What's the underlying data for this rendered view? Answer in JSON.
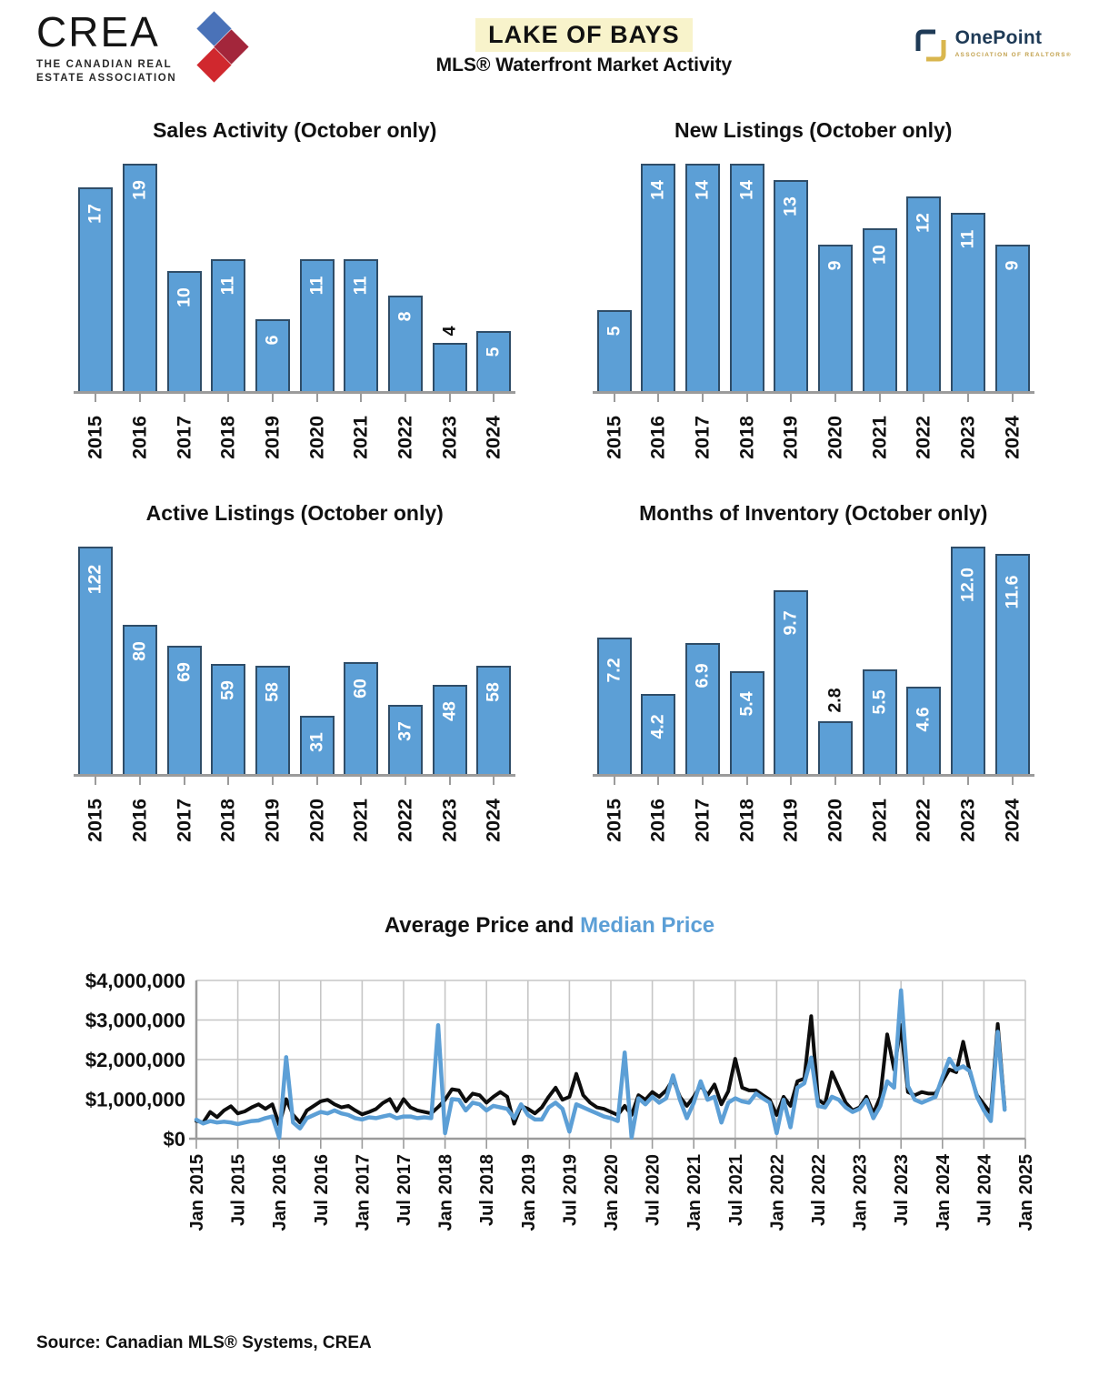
{
  "header": {
    "crea_wordmark": "CREA",
    "crea_tagline_line1": "THE CANADIAN REAL",
    "crea_tagline_line2": "ESTATE ASSOCIATION",
    "title": "LAKE OF BAYS",
    "subtitle": "MLS® Waterfront Market Activity",
    "onepoint_wordmark": "OnePoint",
    "onepoint_tagline": "ASSOCIATION OF REALTORS®"
  },
  "colors": {
    "bar_fill": "#5c9fd6",
    "bar_stroke": "#2f4d68",
    "average_line": "#0d0d0d",
    "median_line": "#5c9fd6",
    "grid": "#c6c6c6",
    "axis": "#9b9b9b",
    "title_highlight": "#f8f3cb",
    "value_label_inside": "#ffffff",
    "value_label_outside": "#000000"
  },
  "chart_data": [
    {
      "type": "bar",
      "title": "Sales Activity (October only)",
      "categories": [
        "2015",
        "2016",
        "2017",
        "2018",
        "2019",
        "2020",
        "2021",
        "2022",
        "2023",
        "2024"
      ],
      "values": [
        17,
        19,
        10,
        11,
        6,
        11,
        11,
        8,
        4,
        5
      ],
      "labels": [
        "17",
        "19",
        "10",
        "11",
        "6",
        "11",
        "11",
        "8",
        "4",
        "5"
      ],
      "outside_label_indices": [
        8
      ]
    },
    {
      "type": "bar",
      "title": "New Listings (October only)",
      "categories": [
        "2015",
        "2016",
        "2017",
        "2018",
        "2019",
        "2020",
        "2021",
        "2022",
        "2023",
        "2024"
      ],
      "values": [
        5,
        14,
        14,
        14,
        13,
        9,
        10,
        12,
        11,
        9
      ],
      "labels": [
        "5",
        "14",
        "14",
        "14",
        "13",
        "9",
        "10",
        "12",
        "11",
        "9"
      ],
      "outside_label_indices": []
    },
    {
      "type": "bar",
      "title": "Active Listings (October only)",
      "categories": [
        "2015",
        "2016",
        "2017",
        "2018",
        "2019",
        "2020",
        "2021",
        "2022",
        "2023",
        "2024"
      ],
      "values": [
        122,
        80,
        69,
        59,
        58,
        31,
        60,
        37,
        48,
        58
      ],
      "labels": [
        "122",
        "80",
        "69",
        "59",
        "58",
        "31",
        "60",
        "37",
        "48",
        "58"
      ],
      "outside_label_indices": []
    },
    {
      "type": "bar",
      "title": "Months of Inventory (October only)",
      "categories": [
        "2015",
        "2016",
        "2017",
        "2018",
        "2019",
        "2020",
        "2021",
        "2022",
        "2023",
        "2024"
      ],
      "values": [
        7.2,
        4.2,
        6.9,
        5.4,
        9.7,
        2.8,
        5.5,
        4.6,
        12.0,
        11.6
      ],
      "labels": [
        "7.2",
        "4.2",
        "6.9",
        "5.4",
        "9.7",
        "2.8",
        "5.5",
        "4.6",
        "12.0",
        "11.6"
      ],
      "outside_label_indices": [
        5
      ]
    },
    {
      "type": "line",
      "title_part1": "Average Price and ",
      "title_part2": "Median Price",
      "ylim": [
        0,
        4000000
      ],
      "y_ticks": [
        "$0",
        "$1,000,000",
        "$2,000,000",
        "$3,000,000",
        "$4,000,000"
      ],
      "x_tick_labels": [
        "Jan 2015",
        "Jul 2015",
        "Jan 2016",
        "Jul 2016",
        "Jan 2017",
        "Jul 2017",
        "Jan 2018",
        "Jul 2018",
        "Jan 2019",
        "Jul 2019",
        "Jan 2020",
        "Jul 2020",
        "Jan 2021",
        "Jul 2021",
        "Jan 2022",
        "Jul 2022",
        "Jan 2023",
        "Jul 2023",
        "Jan 2024",
        "Jul 2024",
        "Jan 2025"
      ],
      "x_tick_interval_months": 6,
      "months": [
        "2015-01",
        "2015-02",
        "2015-03",
        "2015-04",
        "2015-05",
        "2015-06",
        "2015-07",
        "2015-08",
        "2015-09",
        "2015-10",
        "2015-11",
        "2015-12",
        "2016-01",
        "2016-02",
        "2016-03",
        "2016-04",
        "2016-05",
        "2016-06",
        "2016-07",
        "2016-08",
        "2016-09",
        "2016-10",
        "2016-11",
        "2016-12",
        "2017-01",
        "2017-02",
        "2017-03",
        "2017-04",
        "2017-05",
        "2017-06",
        "2017-07",
        "2017-08",
        "2017-09",
        "2017-10",
        "2017-11",
        "2017-12",
        "2018-01",
        "2018-02",
        "2018-03",
        "2018-04",
        "2018-05",
        "2018-06",
        "2018-07",
        "2018-08",
        "2018-09",
        "2018-10",
        "2018-11",
        "2018-12",
        "2019-01",
        "2019-02",
        "2019-03",
        "2019-04",
        "2019-05",
        "2019-06",
        "2019-07",
        "2019-08",
        "2019-09",
        "2019-10",
        "2019-11",
        "2019-12",
        "2020-01",
        "2020-02",
        "2020-03",
        "2020-04",
        "2020-05",
        "2020-06",
        "2020-07",
        "2020-08",
        "2020-09",
        "2020-10",
        "2020-11",
        "2020-12",
        "2021-01",
        "2021-02",
        "2021-03",
        "2021-04",
        "2021-05",
        "2021-06",
        "2021-07",
        "2021-08",
        "2021-09",
        "2021-10",
        "2021-11",
        "2021-12",
        "2022-01",
        "2022-02",
        "2022-03",
        "2022-04",
        "2022-05",
        "2022-06",
        "2022-07",
        "2022-08",
        "2022-09",
        "2022-10",
        "2022-11",
        "2022-12",
        "2023-01",
        "2023-02",
        "2023-03",
        "2023-04",
        "2023-05",
        "2023-06",
        "2023-07",
        "2023-08",
        "2023-09",
        "2023-10",
        "2023-11",
        "2023-12",
        "2024-01",
        "2024-02",
        "2024-03",
        "2024-04",
        "2024-05",
        "2024-06",
        "2024-07",
        "2024-08",
        "2024-09",
        "2024-10"
      ],
      "series": [
        {
          "name": "Average Price",
          "color": "#0d0d0d",
          "values": [
            450000,
            410000,
            675000,
            545000,
            715000,
            820000,
            640000,
            690000,
            790000,
            870000,
            755000,
            870000,
            350000,
            1000000,
            600000,
            410000,
            715000,
            830000,
            945000,
            985000,
            870000,
            790000,
            830000,
            715000,
            615000,
            675000,
            750000,
            900000,
            1000000,
            700000,
            1000000,
            790000,
            715000,
            675000,
            640000,
            800000,
            985000,
            1250000,
            1220000,
            945000,
            1140000,
            1100000,
            910000,
            1060000,
            1180000,
            1060000,
            380000,
            830000,
            755000,
            640000,
            790000,
            1060000,
            1290000,
            985000,
            1060000,
            1640000,
            1100000,
            910000,
            790000,
            755000,
            675000,
            600000,
            830000,
            600000,
            1100000,
            985000,
            1180000,
            1060000,
            1220000,
            1500000,
            1060000,
            830000,
            1060000,
            1350000,
            1100000,
            1370000,
            870000,
            1200000,
            2020000,
            1290000,
            1220000,
            1220000,
            1100000,
            985000,
            600000,
            1060000,
            830000,
            1450000,
            1520000,
            3100000,
            985000,
            870000,
            1680000,
            1290000,
            910000,
            715000,
            790000,
            1060000,
            640000,
            1060000,
            2640000,
            1750000,
            2870000,
            1180000,
            1100000,
            1180000,
            1140000,
            1140000,
            1450000,
            1750000,
            1680000,
            2450000,
            1650000,
            1100000,
            870000,
            640000,
            2900000,
            800000
          ]
        },
        {
          "name": "Median Price",
          "color": "#5c9fd6",
          "values": [
            480000,
            385000,
            445000,
            410000,
            430000,
            410000,
            370000,
            410000,
            445000,
            460000,
            520000,
            560000,
            20000,
            2060000,
            410000,
            260000,
            520000,
            600000,
            675000,
            640000,
            715000,
            640000,
            600000,
            520000,
            485000,
            540000,
            520000,
            560000,
            600000,
            520000,
            560000,
            560000,
            520000,
            540000,
            520000,
            2870000,
            140000,
            1000000,
            985000,
            715000,
            910000,
            870000,
            715000,
            830000,
            790000,
            755000,
            520000,
            870000,
            600000,
            485000,
            485000,
            790000,
            910000,
            755000,
            180000,
            870000,
            790000,
            715000,
            640000,
            560000,
            520000,
            445000,
            2180000,
            30000,
            1020000,
            870000,
            1060000,
            910000,
            1020000,
            1600000,
            985000,
            520000,
            910000,
            1450000,
            985000,
            1060000,
            410000,
            910000,
            1020000,
            945000,
            910000,
            1140000,
            1020000,
            910000,
            140000,
            985000,
            290000,
            1290000,
            1400000,
            2050000,
            830000,
            790000,
            1060000,
            985000,
            790000,
            675000,
            755000,
            985000,
            520000,
            830000,
            1450000,
            1290000,
            3750000,
            1330000,
            985000,
            910000,
            985000,
            1060000,
            1560000,
            2020000,
            1750000,
            1830000,
            1700000,
            1060000,
            715000,
            445000,
            2700000,
            730000
          ]
        }
      ]
    }
  ],
  "footer": {
    "source": "Source: Canadian MLS® Systems, CREA"
  }
}
